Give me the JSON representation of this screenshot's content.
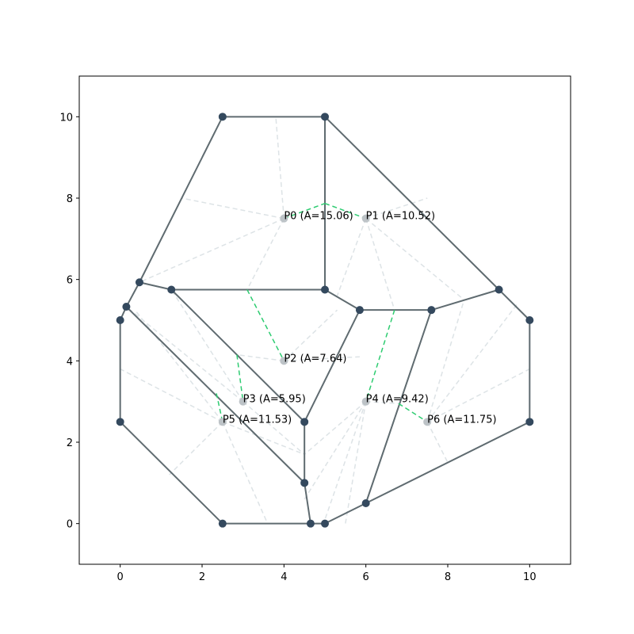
{
  "chart_data": {
    "type": "voronoi",
    "xlim": [
      -1,
      11
    ],
    "ylim": [
      -1,
      11
    ],
    "xticks": [
      0,
      2,
      4,
      6,
      8,
      10
    ],
    "yticks": [
      0,
      2,
      4,
      6,
      8,
      10
    ],
    "edge_color": "#5f6b70",
    "vertex_color": "#34495e",
    "site_color": "#bdc3c7",
    "dual_color": "#2ecc71",
    "guide_color": "#dde3e6",
    "sites": [
      {
        "label": "P0 (A=15.06)",
        "x": 4,
        "y": 7.5
      },
      {
        "label": "P1 (A=10.52)",
        "x": 6,
        "y": 7.5
      },
      {
        "label": "P2 (A=7.64)",
        "x": 4,
        "y": 4
      },
      {
        "label": "P3 (A=5.95)",
        "x": 3,
        "y": 3
      },
      {
        "label": "P4 (A=9.42)",
        "x": 6,
        "y": 3
      },
      {
        "label": "P5 (A=11.53)",
        "x": 2.5,
        "y": 2.5
      },
      {
        "label": "P6 (A=11.75)",
        "x": 7.5,
        "y": 2.5
      }
    ],
    "vertices": [
      [
        2.5,
        10
      ],
      [
        5,
        10
      ],
      [
        9.25,
        5.75
      ],
      [
        10,
        5
      ],
      [
        10,
        2.5
      ],
      [
        6,
        0.5
      ],
      [
        5,
        0
      ],
      [
        4.65,
        0
      ],
      [
        2.5,
        0
      ],
      [
        0,
        2.5
      ],
      [
        0,
        5
      ],
      [
        0.15,
        5.33
      ],
      [
        0.47,
        5.93
      ],
      [
        1.25,
        5.75
      ],
      [
        5,
        5.75
      ],
      [
        5.85,
        5.25
      ],
      [
        7.6,
        5.25
      ],
      [
        4.5,
        2.5
      ],
      [
        4.5,
        1
      ]
    ],
    "edges": [
      [
        [
          2.5,
          10
        ],
        [
          5,
          10
        ]
      ],
      [
        [
          2.5,
          10
        ],
        [
          0.47,
          5.93
        ]
      ],
      [
        [
          5,
          10
        ],
        [
          9.25,
          5.75
        ]
      ],
      [
        [
          5,
          10
        ],
        [
          5,
          5.75
        ]
      ],
      [
        [
          9.25,
          5.75
        ],
        [
          10,
          5
        ]
      ],
      [
        [
          10,
          5
        ],
        [
          10,
          2.5
        ]
      ],
      [
        [
          10,
          2.5
        ],
        [
          6,
          0.5
        ]
      ],
      [
        [
          6,
          0.5
        ],
        [
          7.6,
          5.25
        ]
      ],
      [
        [
          7.6,
          5.25
        ],
        [
          9.25,
          5.75
        ]
      ],
      [
        [
          7.6,
          5.25
        ],
        [
          5.85,
          5.25
        ]
      ],
      [
        [
          5.85,
          5.25
        ],
        [
          5,
          5.75
        ]
      ],
      [
        [
          5,
          5.75
        ],
        [
          1.25,
          5.75
        ]
      ],
      [
        [
          1.25,
          5.75
        ],
        [
          4.5,
          2.5
        ]
      ],
      [
        [
          5.85,
          5.25
        ],
        [
          4.5,
          2.5
        ]
      ],
      [
        [
          4.5,
          2.5
        ],
        [
          4.5,
          1
        ]
      ],
      [
        [
          4.5,
          1
        ],
        [
          0.15,
          5.33
        ]
      ],
      [
        [
          4.5,
          1
        ],
        [
          4.65,
          0
        ]
      ],
      [
        [
          4.65,
          0
        ],
        [
          2.5,
          0
        ]
      ],
      [
        [
          2.5,
          0
        ],
        [
          0,
          2.5
        ]
      ],
      [
        [
          0,
          2.5
        ],
        [
          0,
          5
        ]
      ],
      [
        [
          0,
          5
        ],
        [
          0.15,
          5.33
        ]
      ],
      [
        [
          0.15,
          5.33
        ],
        [
          0.47,
          5.93
        ]
      ],
      [
        [
          0.47,
          5.93
        ],
        [
          1.25,
          5.75
        ]
      ],
      [
        [
          4.65,
          0
        ],
        [
          5,
          0
        ]
      ],
      [
        [
          5,
          0
        ],
        [
          6,
          0.5
        ]
      ]
    ],
    "dual_links": [
      [
        [
          4,
          7.5
        ],
        [
          5,
          7.87
        ]
      ],
      [
        [
          5,
          7.87
        ],
        [
          6,
          7.5
        ]
      ],
      [
        [
          3.1,
          5.75
        ],
        [
          4,
          4
        ]
      ],
      [
        [
          2.85,
          4.15
        ],
        [
          3,
          3
        ]
      ],
      [
        [
          2.35,
          3.2
        ],
        [
          2.5,
          2.5
        ]
      ],
      [
        [
          6.7,
          5.25
        ],
        [
          6,
          3
        ]
      ],
      [
        [
          6.8,
          2.95
        ],
        [
          7.5,
          2.5
        ]
      ]
    ],
    "guides": [
      [
        [
          4,
          7.5
        ],
        [
          3.8,
          10
        ]
      ],
      [
        [
          4,
          7.5
        ],
        [
          1.5,
          8
        ]
      ],
      [
        [
          4,
          7.5
        ],
        [
          0.47,
          5.93
        ]
      ],
      [
        [
          4,
          7.5
        ],
        [
          3.1,
          5.75
        ]
      ],
      [
        [
          6,
          7.5
        ],
        [
          7.5,
          8
        ]
      ],
      [
        [
          6,
          7.5
        ],
        [
          5.3,
          5.6
        ]
      ],
      [
        [
          6,
          7.5
        ],
        [
          6.7,
          5.25
        ]
      ],
      [
        [
          6,
          7.5
        ],
        [
          8.4,
          5.5
        ]
      ],
      [
        [
          4,
          4
        ],
        [
          2.85,
          4.15
        ]
      ],
      [
        [
          4,
          4
        ],
        [
          5.85,
          4.1
        ]
      ],
      [
        [
          4,
          4
        ],
        [
          5.3,
          5.25
        ]
      ],
      [
        [
          6,
          3
        ],
        [
          4.5,
          1.7
        ]
      ],
      [
        [
          6,
          3
        ],
        [
          4.5,
          0.6
        ]
      ],
      [
        [
          6,
          3
        ],
        [
          5.5,
          0
        ]
      ],
      [
        [
          6,
          3
        ],
        [
          5,
          0.1
        ]
      ],
      [
        [
          6,
          3
        ],
        [
          6.8,
          2.95
        ]
      ],
      [
        [
          7.5,
          2.5
        ],
        [
          8.4,
          5.5
        ]
      ],
      [
        [
          7.5,
          2.5
        ],
        [
          9.7,
          5.4
        ]
      ],
      [
        [
          7.5,
          2.5
        ],
        [
          10,
          3.8
        ]
      ],
      [
        [
          7.5,
          2.5
        ],
        [
          8,
          1.5
        ]
      ],
      [
        [
          2.5,
          2.5
        ],
        [
          1.2,
          1.2
        ]
      ],
      [
        [
          2.5,
          2.5
        ],
        [
          0,
          3.8
        ]
      ],
      [
        [
          2.5,
          2.5
        ],
        [
          0.4,
          5.2
        ]
      ],
      [
        [
          2.5,
          2.5
        ],
        [
          3.6,
          0
        ]
      ],
      [
        [
          2.5,
          2.5
        ],
        [
          4.5,
          1.7
        ]
      ],
      [
        [
          3,
          3
        ],
        [
          0.15,
          5.33
        ]
      ],
      [
        [
          3,
          3
        ],
        [
          1.25,
          5.75
        ]
      ],
      [
        [
          3,
          3
        ],
        [
          4.5,
          1.7
        ]
      ]
    ]
  }
}
